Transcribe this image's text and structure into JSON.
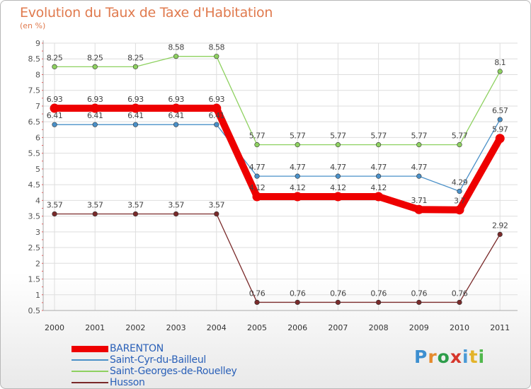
{
  "title": "Evolution du Taux de Taxe d'Habitation",
  "subtitle": "(en %)",
  "logo": "Proxiti",
  "colors": {
    "title": "#e07a4e",
    "legend_text": "#2a60b8",
    "grid": "#dedede",
    "axis": "#aaaaaa",
    "tick_text": "#555555"
  },
  "chart_data": {
    "type": "line",
    "x": [
      "2000",
      "2001",
      "2002",
      "2003",
      "2004",
      "2005",
      "2006",
      "2007",
      "2008",
      "2009",
      "2010",
      "2011"
    ],
    "ylim": [
      0.5,
      9
    ],
    "yticks": [
      "0.5",
      "1",
      "1.5",
      "2",
      "2.5",
      "3",
      "3.5",
      "4",
      "4.5",
      "5",
      "5.5",
      "6",
      "6.5",
      "7",
      "7.5",
      "8",
      "8.5",
      "9"
    ],
    "grid": true,
    "legend": "bottom-left",
    "series": [
      {
        "name": "BARENTON",
        "color": "#ee0000",
        "values": [
          6.93,
          6.93,
          6.93,
          6.93,
          6.93,
          4.12,
          4.12,
          4.12,
          4.12,
          3.71,
          3.7,
          5.97
        ],
        "labels": [
          "6.93",
          "6.93",
          "6.93",
          "6.93",
          "6.93",
          "4.12",
          "4.12",
          "4.12",
          "4.12",
          "3.71",
          "3.7",
          "5.97"
        ],
        "bold": true
      },
      {
        "name": "Saint-Cyr-du-Bailleul",
        "color": "#4a90c8",
        "values": [
          6.41,
          6.41,
          6.41,
          6.41,
          6.41,
          4.77,
          4.77,
          4.77,
          4.77,
          4.77,
          4.29,
          6.57
        ],
        "labels": [
          "6.41",
          "6.41",
          "6.41",
          "6.41",
          "6.41",
          "4.77",
          "4.77",
          "4.77",
          "4.77",
          "4.77",
          "4.29",
          "6.57"
        ]
      },
      {
        "name": "Saint-Georges-de-Rouelley",
        "color": "#8ed160",
        "values": [
          8.25,
          8.25,
          8.25,
          8.58,
          8.58,
          5.77,
          5.77,
          5.77,
          5.77,
          5.77,
          5.77,
          8.1
        ],
        "labels": [
          "8.25",
          "8.25",
          "8.25",
          "8.58",
          "8.58",
          "5.77",
          "5.77",
          "5.77",
          "5.77",
          "5.77",
          "5.77",
          "8.1"
        ]
      },
      {
        "name": "Husson",
        "color": "#7a2a2a",
        "values": [
          3.57,
          3.57,
          3.57,
          3.57,
          3.57,
          0.76,
          0.76,
          0.76,
          0.76,
          0.76,
          0.76,
          2.92
        ],
        "labels": [
          "3.57",
          "3.57",
          "3.57",
          "3.57",
          "3.57",
          "0.76",
          "0.76",
          "0.76",
          "0.76",
          "0.76",
          "0.76",
          "2.92"
        ]
      }
    ]
  }
}
